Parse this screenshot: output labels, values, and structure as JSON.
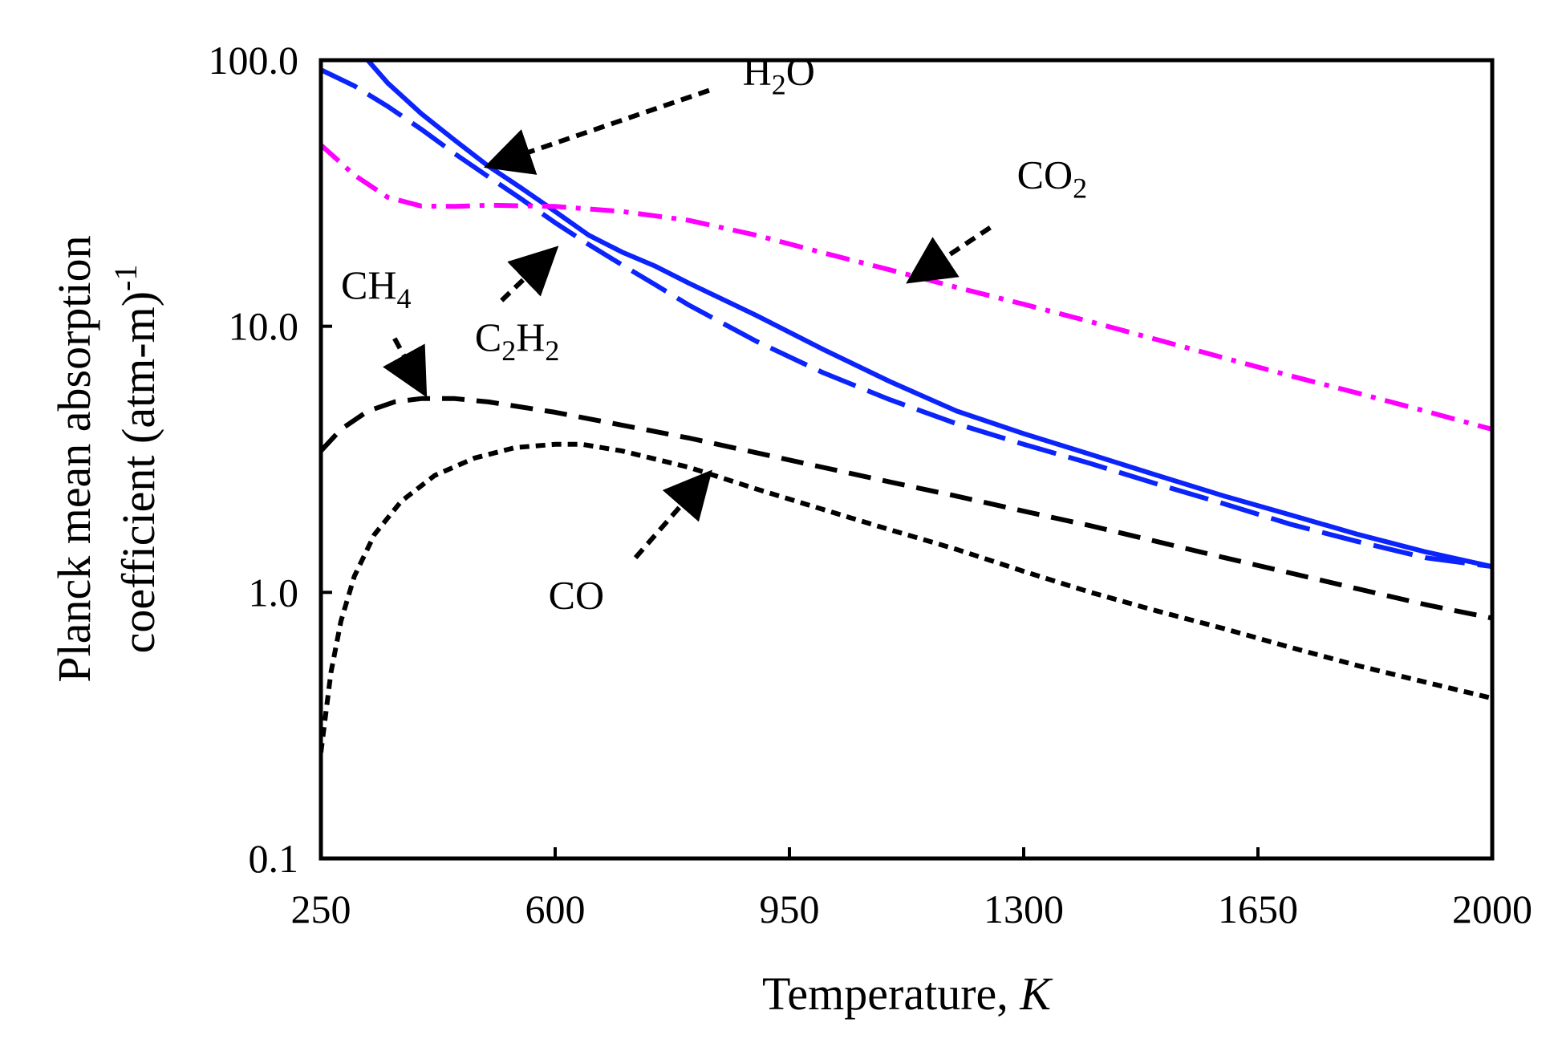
{
  "chart_data": {
    "type": "line",
    "xlabel": "Temperature, ",
    "xlabel_italic": "K",
    "ylabel_line1": "Planck mean absorption",
    "ylabel_line2": "coefficient (atm-m)",
    "ylabel_sup": "-1",
    "xlim": [
      250,
      2000
    ],
    "ylim": [
      0.1,
      100
    ],
    "yscale": "log",
    "x_ticks": [
      250,
      600,
      950,
      1300,
      1650,
      2000
    ],
    "x_tick_labels": [
      "250",
      "600",
      "950",
      "1300",
      "1650",
      "2000"
    ],
    "y_ticks": [
      0.1,
      1,
      10,
      100
    ],
    "y_tick_labels": [
      "0.1",
      "1.0",
      "10.0",
      "100.0"
    ],
    "series": [
      {
        "name": "H2O",
        "color": "#0b24fb",
        "style": "solid",
        "x": [
          320,
          350,
          400,
          450,
          500,
          550,
          600,
          650,
          700,
          750,
          800,
          900,
          1000,
          1100,
          1200,
          1300,
          1400,
          1500,
          1600,
          1700,
          1800,
          1900,
          2000
        ],
        "y": [
          100,
          82,
          63,
          50,
          40,
          33,
          27,
          22,
          19,
          16.8,
          14.5,
          11,
          8.2,
          6.2,
          4.8,
          3.95,
          3.3,
          2.75,
          2.3,
          1.95,
          1.65,
          1.42,
          1.25
        ]
      },
      {
        "name": "C2H2",
        "color": "#0b24fb",
        "style": "long-dash",
        "x": [
          250,
          300,
          350,
          400,
          450,
          500,
          550,
          600,
          650,
          700,
          750,
          800,
          900,
          1000,
          1100,
          1200,
          1300,
          1400,
          1500,
          1600,
          1700,
          1800,
          1900,
          2000
        ],
        "y": [
          92,
          80,
          67,
          55,
          44.5,
          36.5,
          30,
          24.5,
          20.3,
          17,
          14.3,
          12,
          8.8,
          6.7,
          5.3,
          4.3,
          3.6,
          3.05,
          2.55,
          2.15,
          1.8,
          1.55,
          1.35,
          1.25
        ]
      },
      {
        "name": "CO2",
        "color": "#ff00ff",
        "style": "dash-dot",
        "x": [
          250,
          300,
          350,
          400,
          450,
          500,
          600,
          700,
          800,
          900,
          1000,
          1100,
          1200,
          1300,
          1400,
          1500,
          1600,
          1700,
          1800,
          1900,
          2000
        ],
        "y": [
          48,
          37,
          30.5,
          28.3,
          28.2,
          28.5,
          28.2,
          27,
          25,
          22,
          18.9,
          16.3,
          14,
          12.1,
          10.4,
          8.9,
          7.6,
          6.5,
          5.6,
          4.8,
          4.1
        ]
      },
      {
        "name": "CH4",
        "color": "#000000",
        "style": "dash",
        "x": [
          250,
          280,
          320,
          360,
          400,
          450,
          500,
          600,
          700,
          800,
          900,
          1000,
          1100,
          1200,
          1300,
          1400,
          1500,
          1600,
          1700,
          1800,
          1900,
          2000
        ],
        "y": [
          3.4,
          4.1,
          4.8,
          5.2,
          5.35,
          5.35,
          5.2,
          4.75,
          4.25,
          3.8,
          3.35,
          2.95,
          2.6,
          2.3,
          2.02,
          1.78,
          1.55,
          1.35,
          1.18,
          1.03,
          0.9,
          0.8
        ]
      },
      {
        "name": "CO",
        "color": "#000000",
        "style": "short-dash",
        "x": [
          250,
          265,
          280,
          300,
          330,
          370,
          420,
          480,
          540,
          600,
          640,
          700,
          800,
          900,
          1000,
          1100,
          1200,
          1300,
          1400,
          1500,
          1600,
          1700,
          1800,
          1900,
          2000
        ],
        "y": [
          0.25,
          0.5,
          0.78,
          1.15,
          1.65,
          2.2,
          2.75,
          3.2,
          3.5,
          3.6,
          3.6,
          3.4,
          2.95,
          2.45,
          2.05,
          1.72,
          1.45,
          1.2,
          1.0,
          0.85,
          0.73,
          0.62,
          0.53,
          0.46,
          0.4
        ]
      }
    ],
    "annotations": [
      {
        "label": "H",
        "sub": "2",
        "tail": "O",
        "series": "H2O",
        "text_x": 880,
        "text_y": 81,
        "from_x": 830,
        "from_y": 77,
        "to_x": 500,
        "to_y": 40
      },
      {
        "label": "CO",
        "sub": "2",
        "tail": "",
        "series": "CO2",
        "text_x": 1290,
        "text_y": 33,
        "from_x": 1250,
        "from_y": 23.5,
        "to_x": 1130,
        "to_y": 14.8
      },
      {
        "label": "CH",
        "sub": "4",
        "tail": "",
        "series": "CH4",
        "text_x": 280,
        "text_y": 12.7,
        "from_x": 360,
        "from_y": 9,
        "to_x": 405,
        "to_y": 5.6
      },
      {
        "label": "C",
        "sub": "2",
        "tail": "H",
        "sub2": "2",
        "series": "C2H2",
        "text_x": 480,
        "text_y": 8.1,
        "from_x": 520,
        "from_y": 12.5,
        "to_x": 600,
        "to_y": 19.5
      },
      {
        "label": "CO",
        "sub": "",
        "tail": "",
        "series": "CO",
        "text_x": 590,
        "text_y": 0.87,
        "from_x": 720,
        "from_y": 1.35,
        "to_x": 830,
        "to_y": 2.8
      }
    ]
  }
}
